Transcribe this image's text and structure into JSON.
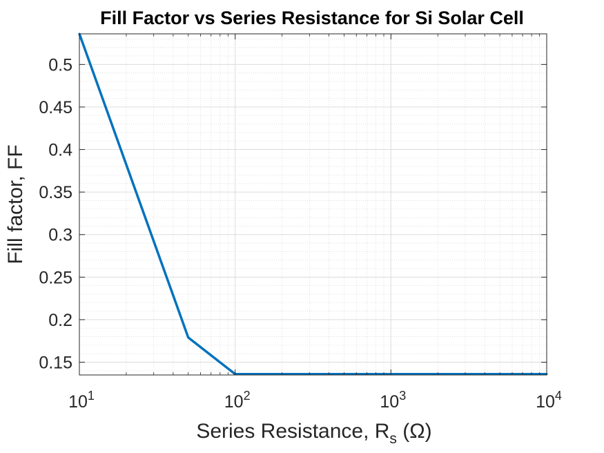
{
  "chart_data": {
    "type": "line",
    "title": "Fill Factor vs Series Resistance for Si Solar Cell",
    "xlabel": {
      "main": "Series Resistance, R",
      "subscript": "s",
      "unit": " (Ω)"
    },
    "ylabel": "Fill factor, FF",
    "xscale": "log",
    "xlim": [
      10,
      10000
    ],
    "ylim": [
      0.135,
      0.536
    ],
    "grid": true,
    "minor_grid": true,
    "xticks": [
      {
        "value": 10,
        "base": "10",
        "exp": "1"
      },
      {
        "value": 100,
        "base": "10",
        "exp": "2"
      },
      {
        "value": 1000,
        "base": "10",
        "exp": "3"
      },
      {
        "value": 10000,
        "base": "10",
        "exp": "4"
      }
    ],
    "yticks": [
      {
        "value": 0.15,
        "label": "0.15"
      },
      {
        "value": 0.2,
        "label": "0.2"
      },
      {
        "value": 0.25,
        "label": "0.25"
      },
      {
        "value": 0.3,
        "label": "0.3"
      },
      {
        "value": 0.35,
        "label": "0.35"
      },
      {
        "value": 0.4,
        "label": "0.4"
      },
      {
        "value": 0.45,
        "label": "0.45"
      },
      {
        "value": 0.5,
        "label": "0.5"
      }
    ],
    "series": [
      {
        "color": "#0072BD",
        "x": [
          10,
          50,
          100,
          500,
          1000,
          5000,
          10000
        ],
        "y": [
          0.536,
          0.179,
          0.136,
          0.136,
          0.136,
          0.136,
          0.136
        ]
      }
    ]
  }
}
